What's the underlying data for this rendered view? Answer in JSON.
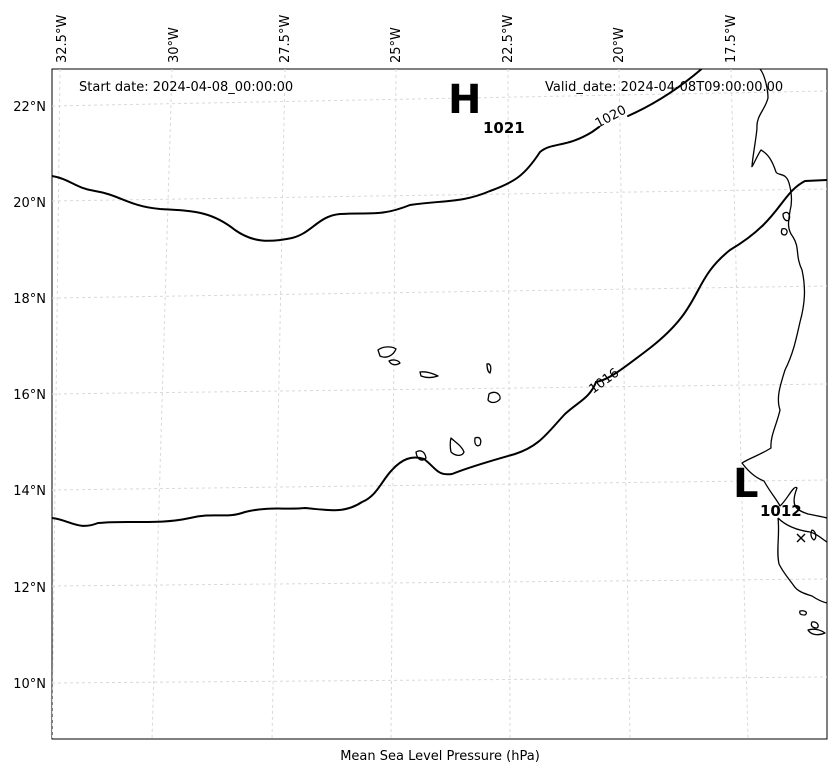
{
  "map": {
    "start_date": "Start date: 2024-04-08_00:00:00",
    "valid_date": "Valid_date: 2024-04-08T09:00:00.00",
    "caption": "Mean Sea Level Pressure (hPa)",
    "lon_labels": [
      "32.5°W",
      "30°W",
      "27.5°W",
      "25°W",
      "22.5°W",
      "20°W",
      "17.5°W"
    ],
    "lat_labels": [
      "22°N",
      "20°N",
      "18°N",
      "16°N",
      "14°N",
      "12°N",
      "10°N"
    ],
    "high_symbol": "H",
    "high_value": "1021",
    "low_symbol": "L",
    "low_value": "1012",
    "contour_1020": "1020",
    "contour_1016": "1016",
    "colors": {
      "contour": "#000000",
      "grid": "#d9d9d9",
      "coast": "#000000",
      "background": "#ffffff"
    }
  }
}
